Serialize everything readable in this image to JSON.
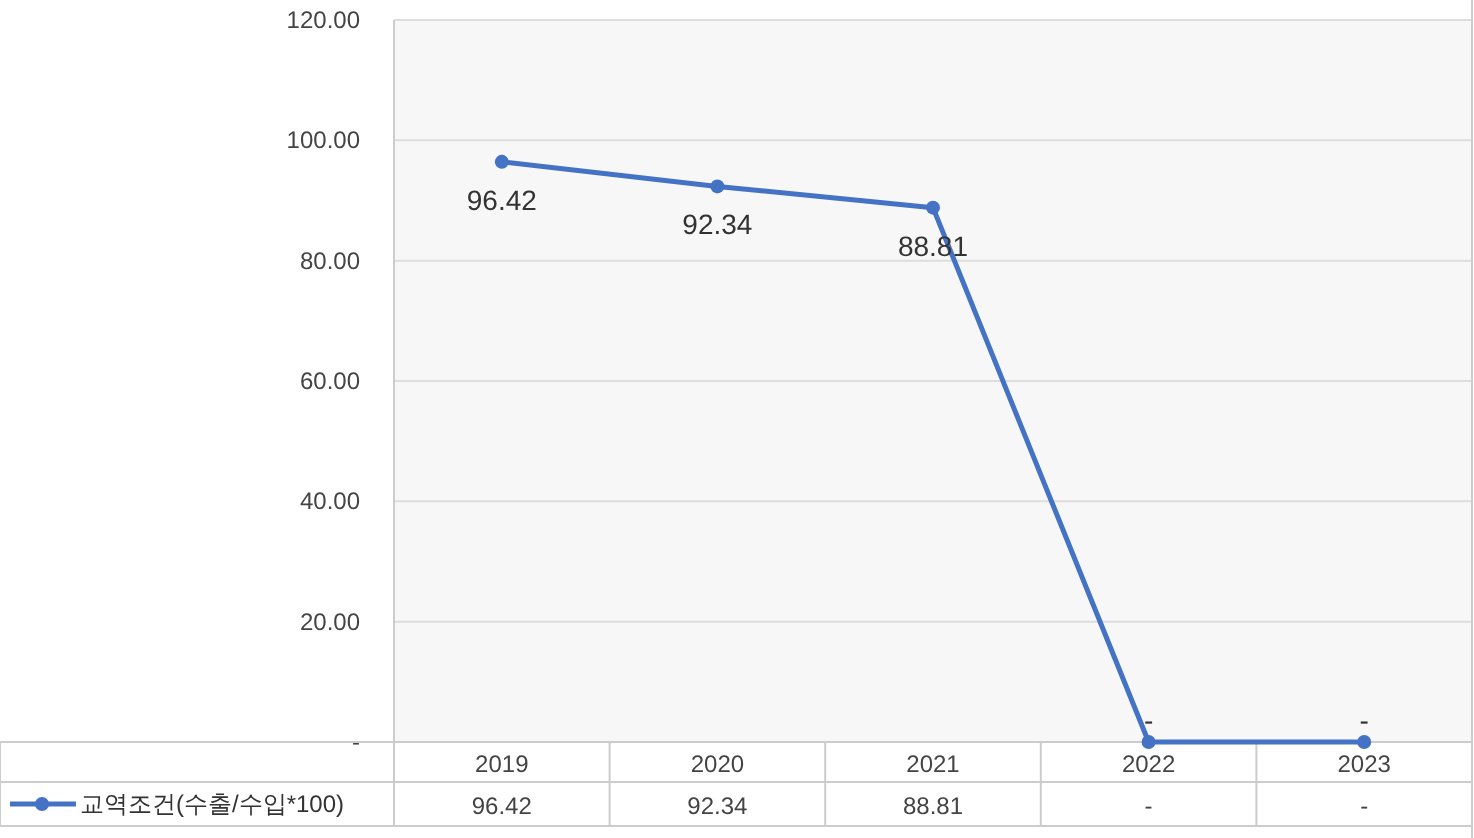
{
  "chart_data": {
    "type": "line",
    "categories": [
      "2019",
      "2020",
      "2021",
      "2022",
      "2023"
    ],
    "series": [
      {
        "name": "교역조건(수출/수입*100)",
        "color": "#4472c4",
        "values": [
          96.42,
          92.34,
          88.81,
          0,
          0
        ],
        "value_labels": [
          "96.42",
          "92.34",
          "88.81",
          "-",
          "-"
        ]
      }
    ],
    "ylim": [
      0,
      120
    ],
    "yticks": [
      {
        "value": 0,
        "label": "-"
      },
      {
        "value": 20,
        "label": "20.00"
      },
      {
        "value": 40,
        "label": "40.00"
      },
      {
        "value": 60,
        "label": "60.00"
      },
      {
        "value": 80,
        "label": "80.00"
      },
      {
        "value": 100,
        "label": "100.00"
      },
      {
        "value": 120,
        "label": "120.00"
      }
    ],
    "grid": "y",
    "legend": "bottom",
    "marker": "circle",
    "line_style": "solid"
  }
}
